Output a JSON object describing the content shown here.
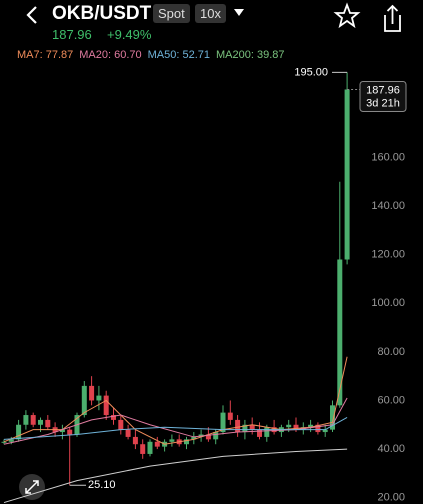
{
  "header": {
    "pair": "OKB/USDT",
    "market": "Spot",
    "leverage": "10x",
    "price": "187.96",
    "change": "+9.49%"
  },
  "indicators": [
    {
      "label": "MA7: 77.87",
      "color": "#f08c5a"
    },
    {
      "label": "MA20: 60.70",
      "color": "#e07ba0"
    },
    {
      "label": "MA50: 52.71",
      "color": "#6fb3d9"
    },
    {
      "label": "MA200: 39.87",
      "color": "#7bc47f"
    }
  ],
  "chart_data": {
    "type": "candlestick",
    "open": [
      43,
      43,
      44,
      50,
      54,
      50,
      52,
      49,
      47,
      48,
      46,
      54,
      66,
      60,
      62,
      54,
      52,
      48,
      45,
      42,
      38,
      43,
      41,
      43,
      44,
      42,
      44,
      45,
      46,
      44,
      47,
      55,
      52,
      47,
      50,
      48,
      45,
      49,
      47,
      49,
      50,
      48,
      49,
      50,
      47,
      48,
      58,
      118
    ],
    "high": [
      44,
      45,
      52,
      56,
      55,
      53,
      54,
      51,
      50,
      49,
      55,
      68,
      70,
      66,
      64,
      57,
      54,
      50,
      48,
      44,
      44,
      45,
      44,
      46,
      46,
      45,
      47,
      48,
      49,
      48,
      58,
      60,
      54,
      52,
      53,
      51,
      50,
      52,
      50,
      52,
      53,
      51,
      52,
      51,
      50,
      60,
      150,
      195
    ],
    "low": [
      42,
      42,
      43,
      48,
      49,
      47,
      48,
      45,
      44,
      25.1,
      45,
      53,
      58,
      56,
      52,
      50,
      46,
      44,
      40,
      36,
      37,
      40,
      39,
      41,
      41,
      40,
      42,
      43,
      43,
      42,
      46,
      50,
      45,
      44,
      46,
      44,
      43,
      46,
      45,
      47,
      47,
      46,
      47,
      46,
      45,
      47,
      57,
      116
    ],
    "close": [
      43,
      44,
      50,
      54,
      50,
      52,
      49,
      47,
      48,
      46,
      54,
      66,
      60,
      62,
      54,
      52,
      48,
      45,
      42,
      38,
      43,
      41,
      43,
      44,
      42,
      44,
      45,
      46,
      44,
      47,
      55,
      52,
      47,
      50,
      48,
      45,
      49,
      47,
      49,
      50,
      48,
      49,
      50,
      47,
      48,
      58,
      118,
      187.96
    ],
    "up_color": "#4caf6e",
    "down_color": "#e0424d",
    "lines": [
      {
        "x": [
          0,
          4,
          8,
          11,
          14,
          18,
          22,
          26,
          30,
          34,
          38,
          42,
          45,
          47
        ],
        "values": [
          43,
          48,
          48,
          55,
          60,
          48,
          42,
          44,
          48,
          50,
          48,
          49,
          51,
          78
        ],
        "color": "#f08c5a"
      },
      {
        "x": [
          0,
          6,
          12,
          16,
          20,
          26,
          32,
          40,
          45,
          47
        ],
        "values": [
          42,
          46,
          52,
          54,
          50,
          45,
          47,
          48,
          50,
          61
        ],
        "color": "#e07ba0"
      },
      {
        "x": [
          0,
          10,
          16,
          22,
          30,
          38,
          44,
          47
        ],
        "values": [
          44,
          46,
          48,
          49,
          48,
          48,
          48,
          53
        ],
        "color": "#6fb3d9"
      },
      {
        "x": [
          0,
          10,
          20,
          30,
          40,
          47
        ],
        "values": [
          18,
          27,
          33,
          37,
          39,
          40
        ],
        "color": "#d0d0d0"
      }
    ],
    "ylim": [
      17.4,
      204.2
    ],
    "yticks": [
      {
        "value": 20,
        "label": "20.00"
      },
      {
        "value": 40,
        "label": "40.00"
      },
      {
        "value": 60,
        "label": "60.00"
      },
      {
        "value": 80,
        "label": "80.00"
      },
      {
        "value": 100,
        "label": "100.00"
      },
      {
        "value": 120,
        "label": "120.00"
      },
      {
        "value": 140,
        "label": "140.00"
      },
      {
        "value": 160,
        "label": "160.00"
      }
    ],
    "high_label": {
      "value": 195,
      "label": "195.00"
    },
    "low_label": {
      "value": 25.1,
      "label": "25.10"
    },
    "last_price": {
      "value": 187.96,
      "label": "187.96"
    },
    "countdown": "3d 21h"
  }
}
